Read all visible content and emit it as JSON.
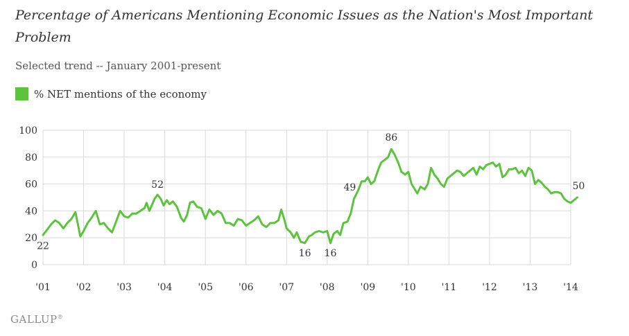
{
  "header": {
    "title": "Percentage of Americans Mentioning Economic Issues as the Nation's Most Important Problem",
    "subtitle": "Selected trend -- January 2001-present"
  },
  "legend": {
    "label": "% NET mentions of the economy"
  },
  "brand": {
    "name": "GALLUP",
    "mark": "®"
  },
  "colors": {
    "series": "#5cc33d",
    "grid": "#d9d9d9",
    "axis_text": "#333333"
  },
  "chart_data": {
    "type": "line",
    "title": "Percentage of Americans Mentioning Economic Issues as the Nation's Most Important Problem",
    "subtitle": "Selected trend -- January 2001-present",
    "xlabel": "",
    "ylabel": "",
    "ylim": [
      0,
      100
    ],
    "xlim": [
      2001,
      2014
    ],
    "yticks": [
      0,
      20,
      40,
      60,
      80,
      100
    ],
    "xticks": [
      {
        "value": 2001,
        "label": "'01"
      },
      {
        "value": 2002,
        "label": "'02"
      },
      {
        "value": 2003,
        "label": "'03"
      },
      {
        "value": 2004,
        "label": "'04"
      },
      {
        "value": 2005,
        "label": "'05"
      },
      {
        "value": 2006,
        "label": "'06"
      },
      {
        "value": 2007,
        "label": "'07"
      },
      {
        "value": 2008,
        "label": "'08"
      },
      {
        "value": 2009,
        "label": "'09"
      },
      {
        "value": 2010,
        "label": "'10"
      },
      {
        "value": 2011,
        "label": "'11"
      },
      {
        "value": 2012,
        "label": "'12"
      },
      {
        "value": 2013,
        "label": "'13"
      },
      {
        "value": 2014,
        "label": "'14"
      }
    ],
    "grid": true,
    "legend_position": "top-left",
    "series": [
      {
        "name": "% NET mentions of the economy",
        "points": [
          [
            2001.0,
            22
          ],
          [
            2001.1,
            26
          ],
          [
            2001.2,
            30
          ],
          [
            2001.3,
            33
          ],
          [
            2001.4,
            31
          ],
          [
            2001.5,
            27
          ],
          [
            2001.6,
            31
          ],
          [
            2001.7,
            34
          ],
          [
            2001.8,
            39
          ],
          [
            2001.92,
            21
          ],
          [
            2002.0,
            25
          ],
          [
            2002.1,
            31
          ],
          [
            2002.2,
            35
          ],
          [
            2002.3,
            40
          ],
          [
            2002.4,
            30
          ],
          [
            2002.5,
            31
          ],
          [
            2002.6,
            27
          ],
          [
            2002.7,
            24
          ],
          [
            2002.8,
            32
          ],
          [
            2002.9,
            40
          ],
          [
            2003.0,
            36
          ],
          [
            2003.1,
            35
          ],
          [
            2003.2,
            38
          ],
          [
            2003.3,
            38
          ],
          [
            2003.4,
            40
          ],
          [
            2003.5,
            42
          ],
          [
            2003.55,
            46
          ],
          [
            2003.62,
            40
          ],
          [
            2003.75,
            49
          ],
          [
            2003.82,
            52
          ],
          [
            2003.9,
            49
          ],
          [
            2003.97,
            44
          ],
          [
            2004.05,
            48
          ],
          [
            2004.12,
            45
          ],
          [
            2004.2,
            47
          ],
          [
            2004.3,
            43
          ],
          [
            2004.4,
            35
          ],
          [
            2004.47,
            32
          ],
          [
            2004.55,
            37
          ],
          [
            2004.62,
            46
          ],
          [
            2004.7,
            47
          ],
          [
            2004.8,
            43
          ],
          [
            2004.9,
            42
          ],
          [
            2005.0,
            34
          ],
          [
            2005.1,
            41
          ],
          [
            2005.2,
            37
          ],
          [
            2005.3,
            40
          ],
          [
            2005.4,
            38
          ],
          [
            2005.5,
            31
          ],
          [
            2005.6,
            31
          ],
          [
            2005.7,
            29
          ],
          [
            2005.8,
            34
          ],
          [
            2005.9,
            33
          ],
          [
            2006.0,
            29
          ],
          [
            2006.1,
            31
          ],
          [
            2006.2,
            33
          ],
          [
            2006.3,
            36
          ],
          [
            2006.4,
            30
          ],
          [
            2006.5,
            28
          ],
          [
            2006.6,
            31
          ],
          [
            2006.7,
            31
          ],
          [
            2006.8,
            33
          ],
          [
            2006.87,
            41
          ],
          [
            2006.95,
            33
          ],
          [
            2007.0,
            27
          ],
          [
            2007.1,
            24
          ],
          [
            2007.18,
            20
          ],
          [
            2007.25,
            24
          ],
          [
            2007.35,
            17
          ],
          [
            2007.45,
            16
          ],
          [
            2007.55,
            21
          ],
          [
            2007.62,
            22
          ],
          [
            2007.7,
            24
          ],
          [
            2007.8,
            25
          ],
          [
            2007.9,
            24
          ],
          [
            2008.0,
            25
          ],
          [
            2008.08,
            16
          ],
          [
            2008.16,
            23
          ],
          [
            2008.25,
            25
          ],
          [
            2008.32,
            22
          ],
          [
            2008.4,
            31
          ],
          [
            2008.5,
            32
          ],
          [
            2008.58,
            38
          ],
          [
            2008.66,
            49
          ],
          [
            2008.76,
            55
          ],
          [
            2008.85,
            62
          ],
          [
            2008.93,
            62
          ],
          [
            2009.0,
            65
          ],
          [
            2009.08,
            60
          ],
          [
            2009.16,
            62
          ],
          [
            2009.25,
            70
          ],
          [
            2009.33,
            76
          ],
          [
            2009.42,
            78
          ],
          [
            2009.5,
            80
          ],
          [
            2009.58,
            86
          ],
          [
            2009.66,
            82
          ],
          [
            2009.75,
            76
          ],
          [
            2009.83,
            69
          ],
          [
            2009.92,
            67
          ],
          [
            2010.0,
            69
          ],
          [
            2010.08,
            60
          ],
          [
            2010.16,
            56
          ],
          [
            2010.22,
            53
          ],
          [
            2010.3,
            58
          ],
          [
            2010.4,
            56
          ],
          [
            2010.48,
            60
          ],
          [
            2010.56,
            72
          ],
          [
            2010.64,
            67
          ],
          [
            2010.72,
            64
          ],
          [
            2010.8,
            60
          ],
          [
            2010.88,
            58
          ],
          [
            2010.96,
            64
          ],
          [
            2011.04,
            66
          ],
          [
            2011.12,
            68
          ],
          [
            2011.2,
            70
          ],
          [
            2011.28,
            69
          ],
          [
            2011.36,
            66
          ],
          [
            2011.44,
            68
          ],
          [
            2011.52,
            70
          ],
          [
            2011.6,
            72
          ],
          [
            2011.68,
            67
          ],
          [
            2011.76,
            73
          ],
          [
            2011.84,
            71
          ],
          [
            2011.92,
            74
          ],
          [
            2012.0,
            75
          ],
          [
            2012.08,
            76
          ],
          [
            2012.16,
            73
          ],
          [
            2012.24,
            75
          ],
          [
            2012.32,
            65
          ],
          [
            2012.4,
            67
          ],
          [
            2012.48,
            71
          ],
          [
            2012.56,
            71
          ],
          [
            2012.64,
            72
          ],
          [
            2012.72,
            68
          ],
          [
            2012.8,
            70
          ],
          [
            2012.88,
            66
          ],
          [
            2012.96,
            72
          ],
          [
            2013.04,
            70
          ],
          [
            2013.12,
            60
          ],
          [
            2013.2,
            63
          ],
          [
            2013.28,
            61
          ],
          [
            2013.36,
            58
          ],
          [
            2013.44,
            56
          ],
          [
            2013.52,
            53
          ],
          [
            2013.6,
            54
          ],
          [
            2013.68,
            54
          ],
          [
            2013.76,
            53
          ],
          [
            2013.84,
            49
          ],
          [
            2013.92,
            47
          ],
          [
            2014.0,
            46
          ],
          [
            2014.08,
            48
          ],
          [
            2014.16,
            50
          ]
        ]
      }
    ],
    "annotations": [
      {
        "x": 2001.0,
        "y": 22,
        "label": "22"
      },
      {
        "x": 2003.82,
        "y": 52,
        "label": "52"
      },
      {
        "x": 2007.45,
        "y": 16,
        "label": "16"
      },
      {
        "x": 2008.08,
        "y": 16,
        "label": "16"
      },
      {
        "x": 2008.66,
        "y": 49,
        "label": "49"
      },
      {
        "x": 2009.58,
        "y": 86,
        "label": "86"
      },
      {
        "x": 2014.16,
        "y": 50,
        "label": "50"
      }
    ]
  }
}
